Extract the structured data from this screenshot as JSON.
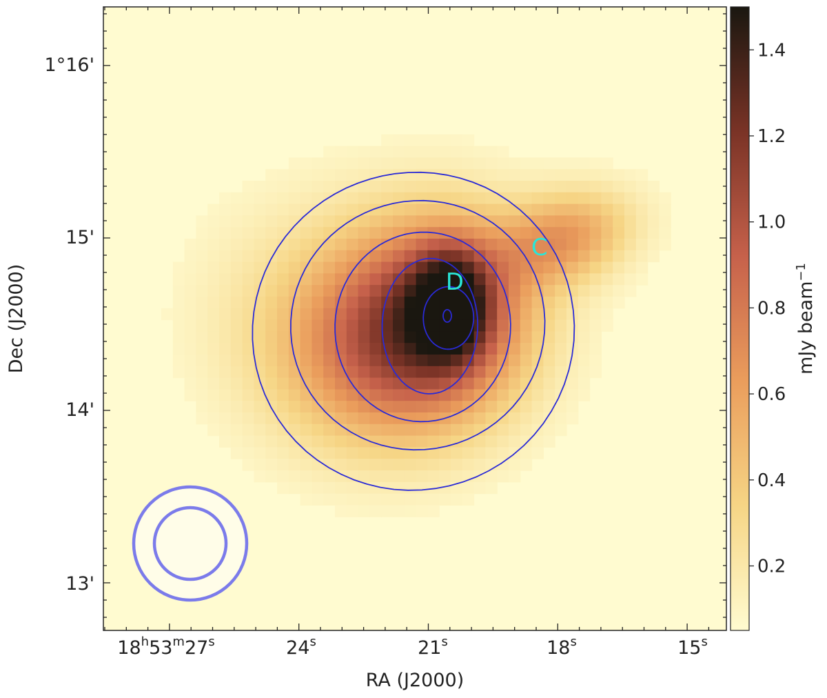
{
  "chart_data": {
    "type": "heatmap",
    "title": "",
    "xlabel": "RA (J2000)",
    "ylabel": "Dec (J2000)",
    "colorbar_label": "mJy beam",
    "colorbar_label_sup": "−1",
    "colormap": "afmhot_r",
    "colormap_stops": [
      "#fffbd0",
      "#f6d585",
      "#ea9d5c",
      "#c6614b",
      "#7a3326",
      "#1a1710"
    ],
    "color_range": [
      0.05,
      1.5
    ],
    "colorbar_ticks": [
      "0.2",
      "0.4",
      "0.6",
      "0.8",
      "1.0",
      "1.2",
      "1.4"
    ],
    "colorbar_tick_values": [
      0.2,
      0.4,
      0.6,
      0.8,
      1.0,
      1.2,
      1.4
    ],
    "x_tick_labels": [
      {
        "main": "18",
        "sup1": "h",
        "mid": "53",
        "sup2": "m",
        "end": "27",
        "sup3": "s"
      },
      {
        "main": "24",
        "sup1": "s"
      },
      {
        "main": "21",
        "sup1": "s"
      },
      {
        "main": "18",
        "sup1": "s"
      },
      {
        "main": "15",
        "sup1": "s"
      }
    ],
    "y_tick_labels": [
      "1°16'",
      "15'",
      "14'",
      "13'"
    ],
    "sources": [
      {
        "label": "C",
        "ra_s": 18.4,
        "dec_min": 14.98
      },
      {
        "label": "D",
        "ra_s": 20.35,
        "dec_min": 14.78
      }
    ],
    "peak": {
      "ra_s": 20.7,
      "dec_min": 14.56,
      "value": 1.55
    },
    "contour_color": "#2a2ad6",
    "label_color": "#29e6d8",
    "beam_color": "#7b7bea",
    "beam_fill": "#fffde8",
    "grid": false
  }
}
